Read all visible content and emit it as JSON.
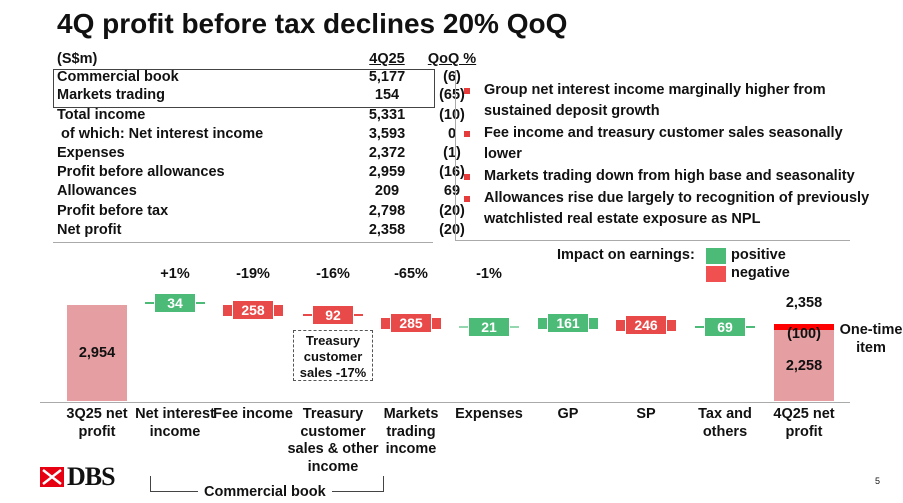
{
  "title": "4Q profit before tax declines 20% QoQ",
  "table": {
    "headers": [
      "(S$m)",
      "4Q25",
      "QoQ %"
    ],
    "rows": [
      {
        "label": "Commercial book",
        "value": "5,177",
        "qoq": "(6)"
      },
      {
        "label": "Markets trading",
        "value": "154",
        "qoq": "(65)"
      },
      {
        "label": "Total income",
        "value": "5,331",
        "qoq": "(10)"
      },
      {
        "label": " of which: Net interest income",
        "value": "3,593",
        "qoq": "0"
      },
      {
        "label": "Expenses",
        "value": "2,372",
        "qoq": "(1)"
      },
      {
        "label": "Profit before allowances",
        "value": "2,959",
        "qoq": "(16)"
      },
      {
        "label": "Allowances",
        "value": "209",
        "qoq": "69"
      },
      {
        "label": "Profit before tax",
        "value": "2,798",
        "qoq": "(20)"
      },
      {
        "label": "Net profit",
        "value": "2,358",
        "qoq": "(20)"
      }
    ]
  },
  "bullets": [
    "Group net interest income marginally higher from sustained deposit growth",
    "Fee income and treasury customer sales seasonally lower",
    "Markets trading down from high base and seasonality",
    "Allowances rise due largely to recognition of previously watchlisted real estate exposure as NPL"
  ],
  "legend": {
    "title": "Impact on earnings:",
    "positive": "positive",
    "negative": "negative",
    "positive_color": "#4dbb78",
    "negative_color": "#f05050"
  },
  "waterfall": {
    "start": {
      "label": "3Q25 net profit",
      "value": "2,954"
    },
    "steps": [
      {
        "label": "Net interest income",
        "value": "34",
        "pct": "+1%",
        "sign": "positive"
      },
      {
        "label": "Fee income",
        "value": "258",
        "pct": "-19%",
        "sign": "negative"
      },
      {
        "label": "Treasury customer sales & other income",
        "value": "92",
        "pct": "-16%",
        "sign": "negative"
      },
      {
        "label": "Markets trading income",
        "value": "285",
        "pct": "-65%",
        "sign": "negative"
      },
      {
        "label": "Expenses",
        "value": "21",
        "pct": "-1%",
        "sign": "positive"
      },
      {
        "label": "GP",
        "value": "161",
        "pct": "",
        "sign": "positive"
      },
      {
        "label": "SP",
        "value": "246",
        "pct": "",
        "sign": "negative"
      },
      {
        "label": "Tax and others",
        "value": "69",
        "pct": "",
        "sign": "positive"
      }
    ],
    "end": {
      "label": "4Q25 net profit",
      "total": "2,358",
      "one_time": "(100)",
      "underlying": "2,258",
      "one_time_label": "One-time item"
    },
    "annotation": "Treasury customer sales -17%",
    "bracket_label": "Commercial book"
  },
  "brand": "DBS",
  "page_number": "5"
}
